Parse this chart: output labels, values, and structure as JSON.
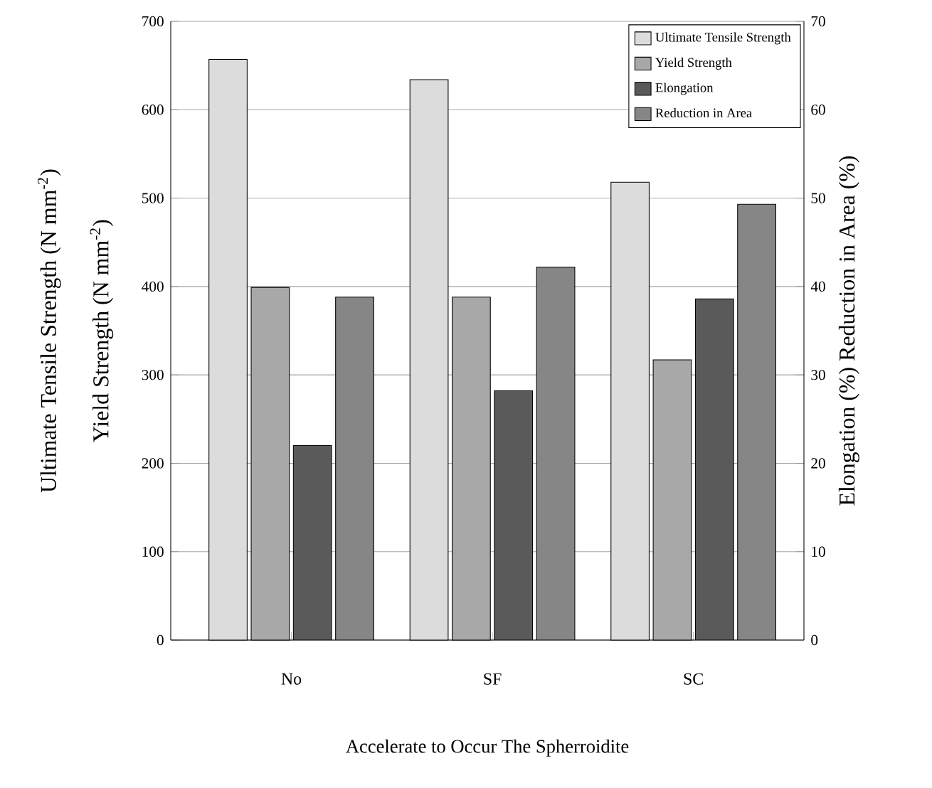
{
  "chart_data": {
    "type": "bar",
    "xlabel": "Accelerate to Occur The Spherroidite",
    "ylabel": "Yield Strength (N mm$^{-2}$)",
    "y2label": "Elongation (%)  Reduction in Area (%)",
    "annotations": [
      "Ultimate Tensile Strength (N mm$^{-2}$)"
    ],
    "categories": [
      "No",
      "SF",
      "SC"
    ],
    "series": [
      {
        "name": "Ultimate Tensile Strength",
        "color": "#dcdcdc",
        "values": [
          657,
          634,
          518
        ]
      },
      {
        "name": "Yield Strength",
        "color": "#a8a8a8",
        "values": [
          399,
          388,
          317
        ]
      },
      {
        "name": "Elongation",
        "color": "#5a5a5a",
        "values": [
          22,
          28.2,
          38.6
        ],
        "axis": "y2"
      },
      {
        "name": "Reduction in Area",
        "color": "#868686",
        "values": [
          38.8,
          42.2,
          49.3
        ],
        "axis": "y2"
      }
    ],
    "ylim": [
      0,
      700
    ],
    "yticks": [
      0,
      100,
      200,
      300,
      400,
      500,
      600,
      700
    ],
    "y2lim": [
      0,
      70
    ],
    "y2ticks": [
      0,
      10,
      20,
      30,
      40,
      50,
      60,
      70
    ],
    "grid": "y",
    "legend": "top right"
  }
}
